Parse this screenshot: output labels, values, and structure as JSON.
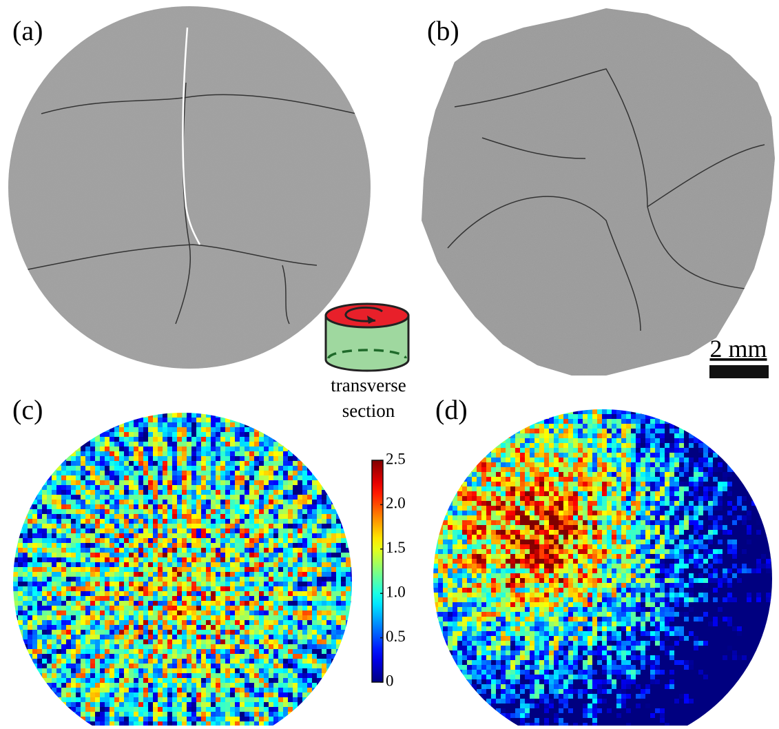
{
  "panels": [
    {
      "label": "(a)"
    },
    {
      "label": "(b)"
    },
    {
      "label": "(c)"
    },
    {
      "label": "(d)"
    }
  ],
  "scale_bar": {
    "label": "2 mm"
  },
  "inset": {
    "label_lines": [
      "transverse",
      "section"
    ]
  },
  "colorbar": {
    "lim": [
      0,
      2.5
    ],
    "ticks": [
      0,
      0.5,
      {
        "value": 1,
        "label": "1.0"
      },
      1.5,
      {
        "value": 2,
        "label": "2.0"
      },
      2.5
    ]
  }
}
